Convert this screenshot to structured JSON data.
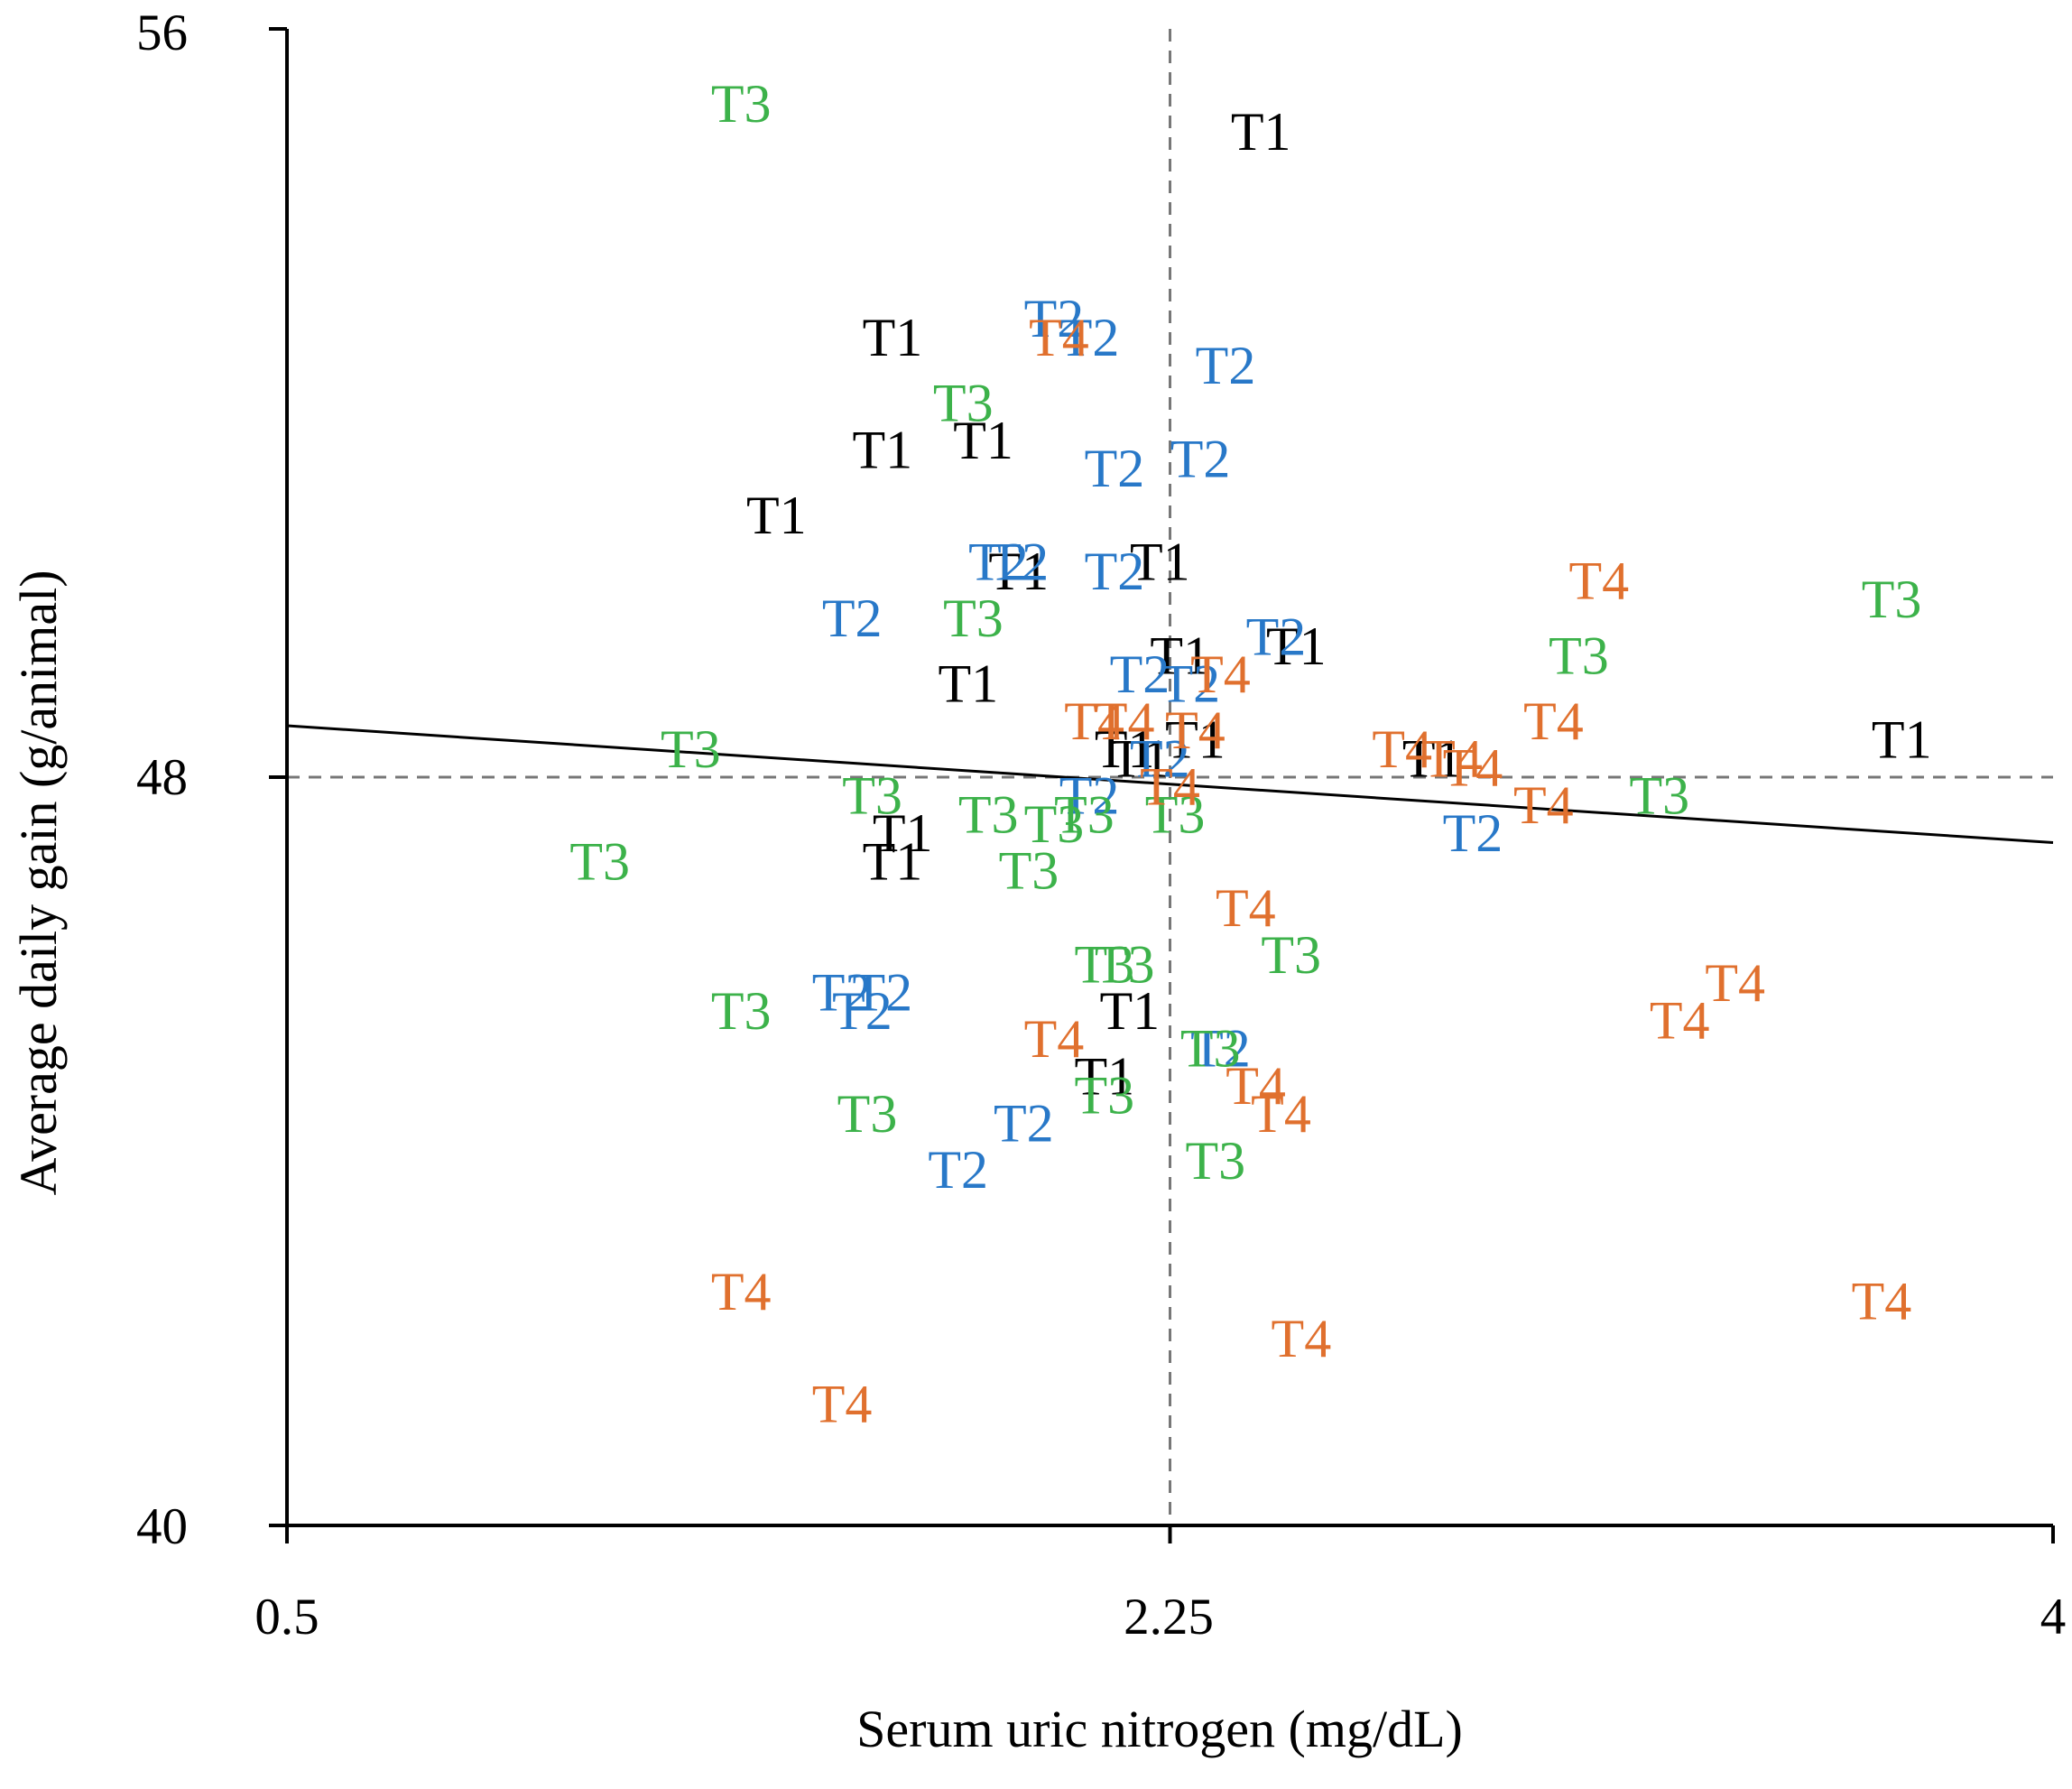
{
  "chart_data": {
    "type": "scatter",
    "title": "",
    "xlabel": "Serum uric nitrogen (mg/dL)",
    "ylabel": "Average daily gain (g/animal)",
    "xlim": [
      0.5,
      4
    ],
    "ylim": [
      40,
      56
    ],
    "xticks": [
      0.5,
      2.25,
      4
    ],
    "yticks": [
      40,
      48,
      56
    ],
    "xtick_labels": [
      "0.5",
      "2.25",
      "4"
    ],
    "ytick_labels": [
      "40",
      "48",
      "56"
    ],
    "grid": false,
    "reference_lines": {
      "x": 2.25,
      "y": 48,
      "style": "dashed"
    },
    "trendline": {
      "x": [
        0.5,
        4
      ],
      "y": [
        48.55,
        47.3
      ]
    },
    "colors": {
      "T1": "#000000",
      "T2": "#2878c8",
      "T3": "#3cb24a",
      "T4": "#e0702e"
    },
    "series": [
      {
        "name": "T1",
        "points": [
          [
            2.43,
            54.9
          ],
          [
            1.7,
            52.7
          ],
          [
            1.68,
            51.5
          ],
          [
            1.88,
            51.6
          ],
          [
            1.47,
            50.8
          ],
          [
            2.23,
            50.3
          ],
          [
            1.95,
            50.2
          ],
          [
            1.85,
            49.0
          ],
          [
            2.27,
            49.3
          ],
          [
            2.5,
            49.4
          ],
          [
            2.77,
            48.2
          ],
          [
            3.7,
            48.4
          ],
          [
            2.16,
            48.3
          ],
          [
            2.19,
            48.2
          ],
          [
            2.3,
            48.4
          ],
          [
            1.72,
            47.4
          ],
          [
            1.7,
            47.1
          ],
          [
            2.17,
            45.5
          ],
          [
            2.12,
            44.8
          ]
        ]
      },
      {
        "name": "T2",
        "points": [
          [
            2.02,
            52.9
          ],
          [
            2.09,
            52.7
          ],
          [
            2.36,
            52.4
          ],
          [
            2.14,
            51.3
          ],
          [
            2.31,
            51.4
          ],
          [
            1.91,
            50.3
          ],
          [
            1.95,
            50.3
          ],
          [
            2.14,
            50.2
          ],
          [
            1.62,
            49.7
          ],
          [
            2.46,
            49.5
          ],
          [
            2.19,
            49.1
          ],
          [
            2.29,
            49.0
          ],
          [
            2.23,
            48.2
          ],
          [
            2.09,
            47.8
          ],
          [
            2.85,
            47.4
          ],
          [
            1.6,
            45.7
          ],
          [
            1.68,
            45.7
          ],
          [
            1.64,
            45.5
          ],
          [
            1.96,
            44.3
          ],
          [
            1.83,
            43.8
          ],
          [
            2.35,
            45.1
          ]
        ]
      },
      {
        "name": "T3",
        "points": [
          [
            1.4,
            55.2
          ],
          [
            1.84,
            52.0
          ],
          [
            1.86,
            49.7
          ],
          [
            3.68,
            49.9
          ],
          [
            3.06,
            49.3
          ],
          [
            1.3,
            48.3
          ],
          [
            1.66,
            47.8
          ],
          [
            1.89,
            47.6
          ],
          [
            2.08,
            47.6
          ],
          [
            2.02,
            47.5
          ],
          [
            2.26,
            47.6
          ],
          [
            3.22,
            47.8
          ],
          [
            1.12,
            47.1
          ],
          [
            1.97,
            47.0
          ],
          [
            2.49,
            46.1
          ],
          [
            2.12,
            46.0
          ],
          [
            2.16,
            46.0
          ],
          [
            1.4,
            45.5
          ],
          [
            2.33,
            45.1
          ],
          [
            2.12,
            44.6
          ],
          [
            1.65,
            44.4
          ],
          [
            2.34,
            43.9
          ]
        ]
      },
      {
        "name": "T4",
        "points": [
          [
            2.03,
            52.7
          ],
          [
            3.1,
            50.1
          ],
          [
            2.35,
            49.1
          ],
          [
            2.1,
            48.6
          ],
          [
            2.16,
            48.6
          ],
          [
            2.3,
            48.5
          ],
          [
            3.01,
            48.6
          ],
          [
            2.71,
            48.3
          ],
          [
            2.81,
            48.2
          ],
          [
            2.85,
            48.1
          ],
          [
            2.25,
            47.9
          ],
          [
            2.99,
            47.7
          ],
          [
            2.4,
            46.6
          ],
          [
            3.37,
            45.8
          ],
          [
            3.26,
            45.4
          ],
          [
            2.02,
            45.2
          ],
          [
            2.42,
            44.7
          ],
          [
            2.47,
            44.4
          ],
          [
            1.4,
            42.5
          ],
          [
            1.6,
            41.3
          ],
          [
            3.66,
            42.4
          ],
          [
            2.51,
            42.0
          ]
        ]
      }
    ]
  }
}
